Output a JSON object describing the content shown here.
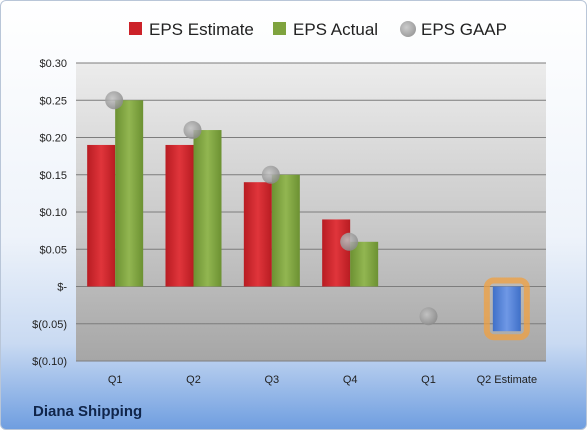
{
  "company": "Diana Shipping",
  "colors": {
    "estimate": "#cc2229",
    "actual": "#7fa33e",
    "gaap": "#a6a6a6",
    "highlight": "#f0a040"
  },
  "chart_data": {
    "type": "bar",
    "title": "",
    "xlabel": "",
    "ylabel": "",
    "categories": [
      "Q1",
      "Q2",
      "Q3",
      "Q4",
      "Q1",
      "Q2 Estimate"
    ],
    "ylim": [
      -0.1,
      0.3
    ],
    "yticks": [
      0.3,
      0.25,
      0.2,
      0.15,
      0.1,
      0.05,
      0,
      -0.05,
      -0.1
    ],
    "ytick_labels": [
      "$0.30",
      "$0.25",
      "$0.20",
      "$0.15",
      "$0.10",
      "$0.05",
      "$-",
      "$(0.05)",
      "$(0.10)"
    ],
    "legend_position": "top",
    "grid": true,
    "series": [
      {
        "name": "EPS Estimate",
        "type": "bar",
        "values": [
          0.19,
          0.19,
          0.14,
          0.09,
          null,
          null
        ]
      },
      {
        "name": "EPS Actual",
        "type": "bar",
        "values": [
          0.25,
          0.21,
          0.15,
          0.06,
          null,
          -0.06
        ]
      },
      {
        "name": "EPS GAAP",
        "type": "scatter",
        "values": [
          0.25,
          0.21,
          0.15,
          0.06,
          -0.04,
          null
        ]
      }
    ],
    "highlighted_category": "Q2 Estimate"
  }
}
